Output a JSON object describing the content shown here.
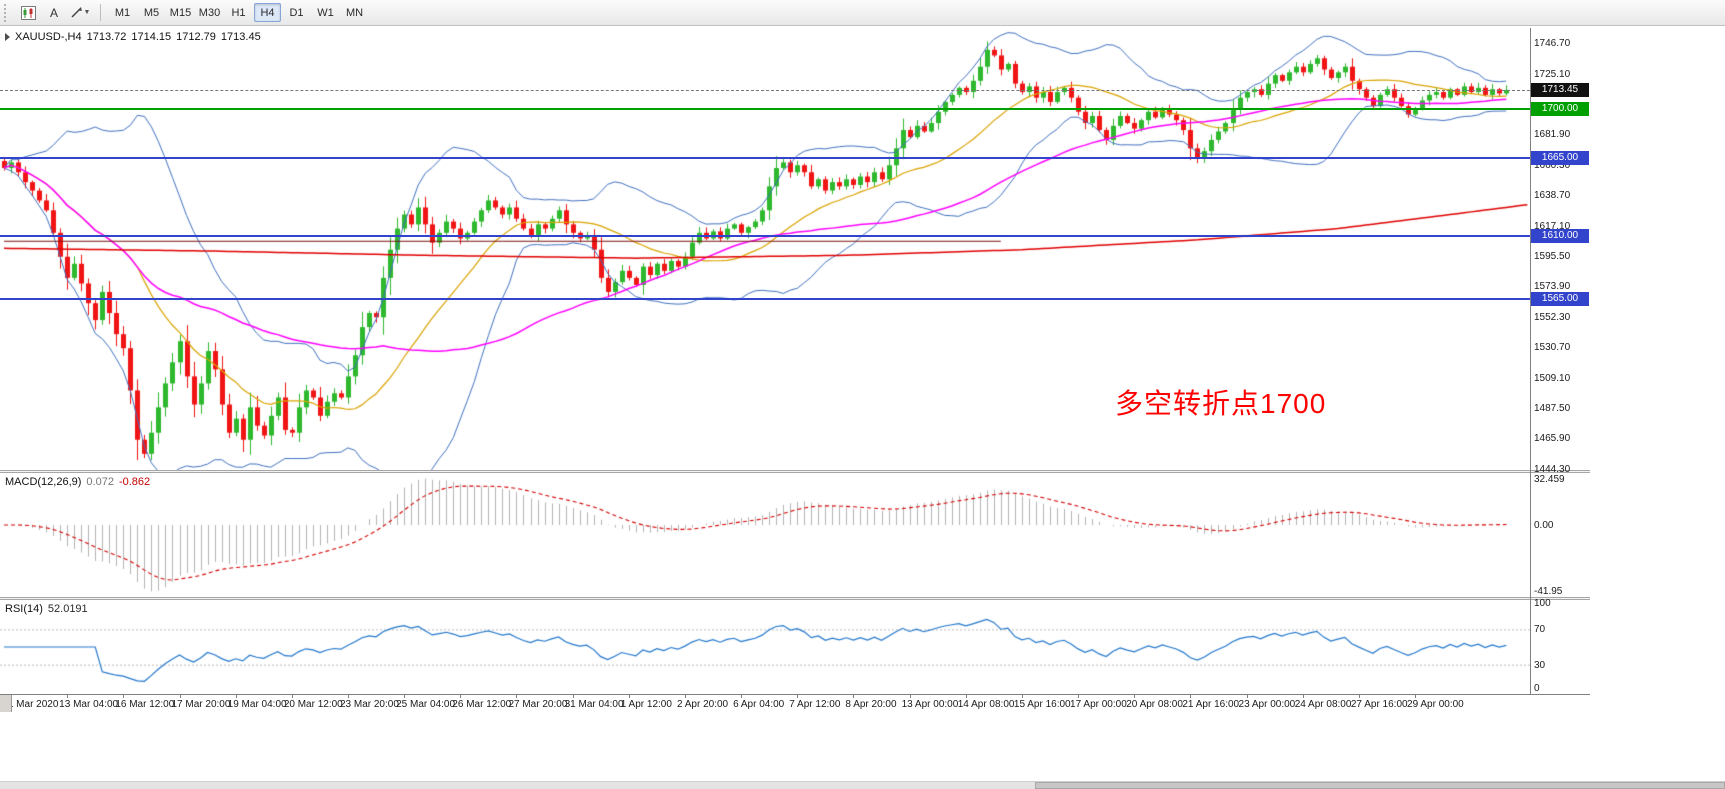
{
  "toolbar": {
    "text_tool_label": "A",
    "timeframes": [
      "M1",
      "M5",
      "M15",
      "M30",
      "H1",
      "H4",
      "D1",
      "W1",
      "MN"
    ],
    "active_timeframe": "H4"
  },
  "chart_data": {
    "type": "candlestick",
    "symbol_label": "XAUUSD-,H4",
    "ohlc_display": {
      "open": "1713.72",
      "high": "1714.15",
      "low": "1712.79",
      "close": "1713.45"
    },
    "annotation": {
      "text": "多空转折点1700",
      "color": "#ff0000"
    },
    "price_axis": {
      "max": 1757.5,
      "min": 1443.5,
      "ticks": [
        "1746.70",
        "1725.10",
        "1703.50",
        "1681.90",
        "1660.30",
        "1638.70",
        "1617.10",
        "1595.50",
        "1573.90",
        "1552.30",
        "1530.70",
        "1509.10",
        "1487.50",
        "1465.90",
        "1444.30"
      ]
    },
    "current_price": {
      "label": "1713.45",
      "value": 1713.45
    },
    "hlines": [
      {
        "price": "1700.00",
        "value": 1700.0,
        "color": "#00a000",
        "width": 2
      },
      {
        "price": "1665.00",
        "value": 1665.0,
        "color": "#3344cc",
        "width": 2
      },
      {
        "price": "1610.00",
        "value": 1610.0,
        "color": "#3344cc",
        "width": 2
      },
      {
        "price": "1565.00",
        "value": 1565.0,
        "color": "#3344cc",
        "width": 2
      }
    ],
    "time_labels": [
      "11 Mar 2020",
      "13 Mar 04:00",
      "16 Mar 12:00",
      "17 Mar 20:00",
      "19 Mar 04:00",
      "20 Mar 12:00",
      "23 Mar 20:00",
      "25 Mar 04:00",
      "26 Mar 12:00",
      "27 Mar 20:00",
      "31 Mar 04:00",
      "1 Apr 12:00",
      "2 Apr 20:00",
      "6 Apr 04:00",
      "7 Apr 12:00",
      "8 Apr 20:00",
      "13 Apr 00:00",
      "14 Apr 08:00",
      "15 Apr 16:00",
      "17 Apr 00:00",
      "20 Apr 08:00",
      "21 Apr 16:00",
      "23 Apr 00:00",
      "24 Apr 08:00",
      "27 Apr 16:00",
      "29 Apr 00:00"
    ],
    "bars": {
      "count": 215,
      "spacing": 7.02,
      "first_open": 1663,
      "closes": [
        1658,
        1662,
        1655,
        1648,
        1642,
        1635,
        1628,
        1612,
        1595,
        1580,
        1590,
        1576,
        1562,
        1550,
        1570,
        1555,
        1540,
        1530,
        1500,
        1465,
        1455,
        1470,
        1488,
        1505,
        1520,
        1535,
        1510,
        1490,
        1505,
        1528,
        1515,
        1490,
        1470,
        1480,
        1465,
        1488,
        1475,
        1468,
        1482,
        1495,
        1472,
        1470,
        1488,
        1500,
        1495,
        1482,
        1492,
        1498,
        1495,
        1510,
        1525,
        1545,
        1555,
        1552,
        1580,
        1600,
        1615,
        1625,
        1618,
        1630,
        1618,
        1605,
        1612,
        1620,
        1615,
        1608,
        1612,
        1620,
        1628,
        1635,
        1630,
        1625,
        1630,
        1622,
        1615,
        1610,
        1618,
        1615,
        1622,
        1628,
        1618,
        1612,
        1608,
        1610,
        1600,
        1580,
        1570,
        1577,
        1585,
        1580,
        1575,
        1588,
        1582,
        1590,
        1585,
        1592,
        1588,
        1595,
        1605,
        1612,
        1608,
        1613,
        1608,
        1615,
        1618,
        1612,
        1616,
        1620,
        1628,
        1645,
        1658,
        1662,
        1655,
        1660,
        1655,
        1645,
        1650,
        1642,
        1648,
        1645,
        1650,
        1646,
        1652,
        1648,
        1655,
        1650,
        1660,
        1672,
        1685,
        1680,
        1688,
        1684,
        1690,
        1698,
        1705,
        1710,
        1715,
        1712,
        1720,
        1730,
        1742,
        1738,
        1728,
        1732,
        1718,
        1712,
        1716,
        1708,
        1712,
        1705,
        1712,
        1715,
        1708,
        1698,
        1690,
        1695,
        1685,
        1678,
        1688,
        1695,
        1690,
        1686,
        1692,
        1698,
        1694,
        1700,
        1696,
        1692,
        1685,
        1672,
        1665,
        1670,
        1678,
        1684,
        1690,
        1700,
        1708,
        1712,
        1714,
        1710,
        1718,
        1724,
        1720,
        1726,
        1730,
        1726,
        1732,
        1736,
        1728,
        1722,
        1726,
        1730,
        1720,
        1714,
        1708,
        1702,
        1710,
        1714,
        1708,
        1702,
        1696,
        1700,
        1706,
        1710,
        1712,
        1708,
        1714,
        1710,
        1716,
        1712,
        1715,
        1710,
        1714,
        1711,
        1713.45
      ]
    },
    "indicators": {
      "bollinger": {
        "period": 20,
        "deviation": 2
      },
      "sma_fast_period": 20,
      "sma_slow_period": 55,
      "rsi_period": 14
    },
    "red_ma_waypoints": [
      [
        0,
        1601
      ],
      [
        30,
        1599
      ],
      [
        60,
        1596
      ],
      [
        90,
        1594
      ],
      [
        120,
        1596
      ],
      [
        145,
        1600
      ],
      [
        170,
        1607
      ],
      [
        190,
        1615
      ],
      [
        214,
        1630
      ],
      [
        217,
        1632
      ]
    ],
    "maroon_segment": {
      "price": 1606,
      "from": 0,
      "to": 142,
      "color": "#7a1010"
    },
    "macd": {
      "label": "MACD(12,26,9)",
      "value_main": "0.072",
      "value_signal": "-0.862",
      "axis": [
        "32.459",
        "0.00",
        "-41.95"
      ]
    },
    "rsi": {
      "label": "RSI(14)",
      "value": "52.0191",
      "axis": [
        "100",
        "70",
        "30",
        "0"
      ],
      "levels": [
        70,
        30
      ]
    },
    "colors": {
      "up": "#2eb82e",
      "down": "#f01414",
      "bollinger": "#3f6fbf",
      "sma20": "#d9a300",
      "sma55": "#ff00ff",
      "red_ma": "#e00000",
      "hline_blue": "#3344cc",
      "hline_green": "#00a000",
      "macd_hist": "#b3b3b3",
      "macd_signal": "#d40000",
      "rsi_line": "#2277cc",
      "levels": "#bbbbbb",
      "current_price_box": "#111111"
    }
  }
}
